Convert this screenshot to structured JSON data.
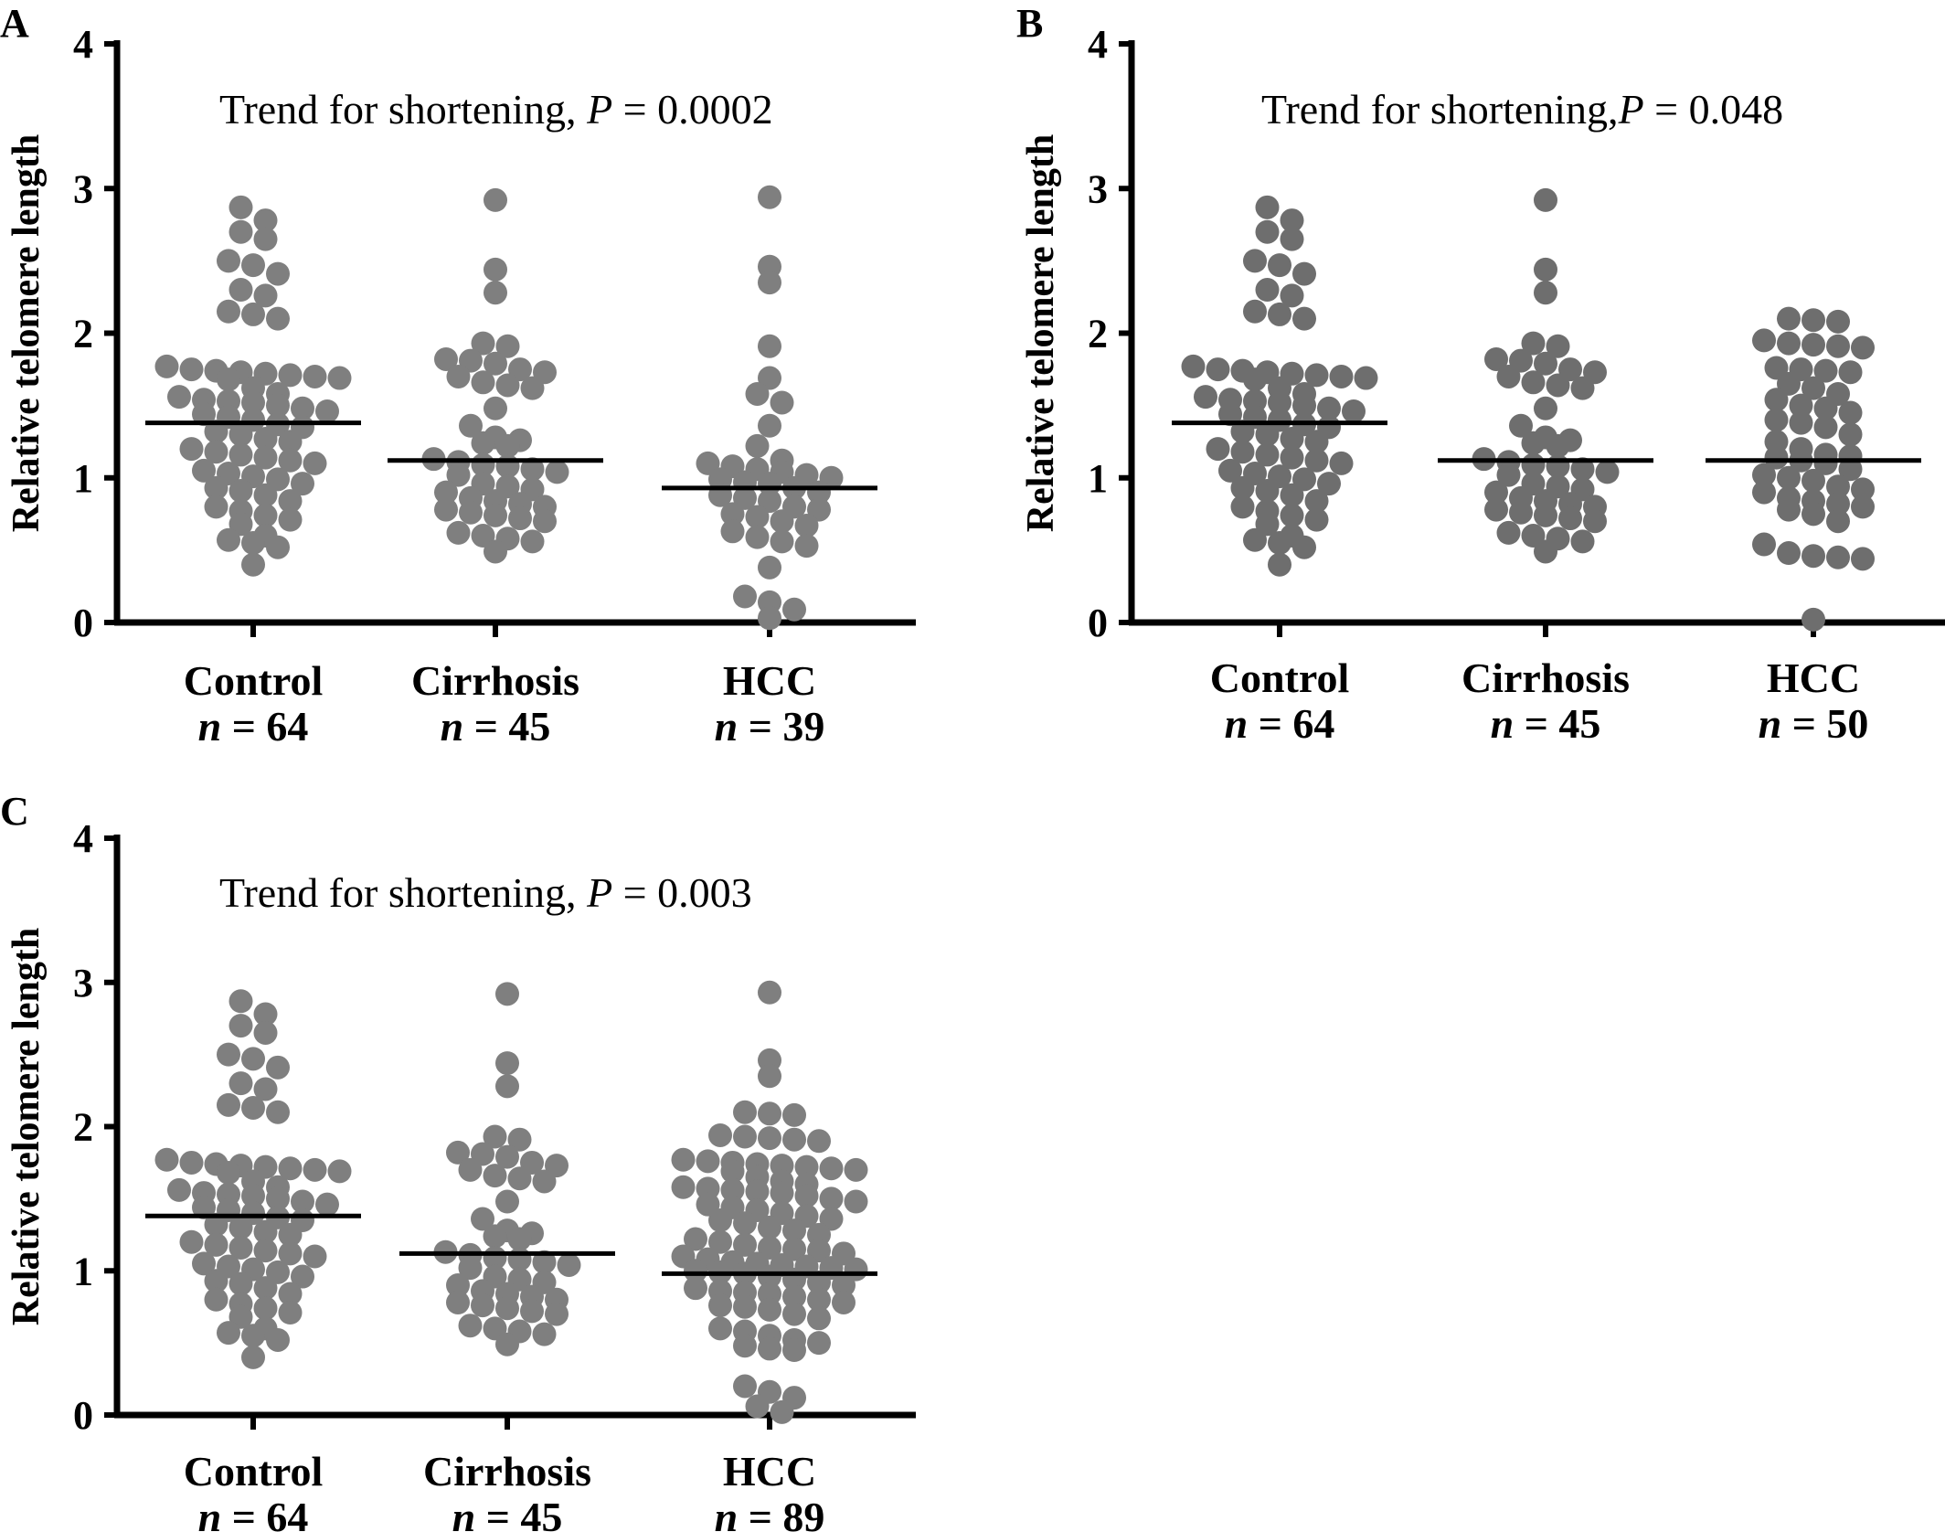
{
  "figure_panels": [
    "A",
    "B",
    "C"
  ],
  "chart_data": [
    {
      "panel": "A",
      "type": "scatter",
      "title": "Trend for shortening, P = 0.0002",
      "annotation_prefix": "Trend for shortening, ",
      "annotation_p": "P",
      "annotation_suffix": " = 0.0002",
      "xlabel": "",
      "ylabel": "Relative telomere length",
      "ylim": [
        0,
        4
      ],
      "yticks": [
        "0",
        "1",
        "2",
        "3",
        "4"
      ],
      "categories": [
        "Control",
        "Cirrhosis",
        "HCC"
      ],
      "n_labels": [
        "n = 64",
        "n = 45",
        "n = 39"
      ],
      "n_values": [
        "64",
        "45",
        "39"
      ],
      "marker_color": "#7f7f7f",
      "means": [
        1.38,
        1.12,
        0.93
      ],
      "series": [
        {
          "values": [
            2.87,
            2.78,
            2.7,
            2.65,
            2.5,
            2.47,
            2.41,
            2.3,
            2.26,
            2.15,
            2.13,
            2.1,
            1.77,
            1.75,
            1.74,
            1.73,
            1.72,
            1.71,
            1.7,
            1.69,
            1.68,
            1.62,
            1.58,
            1.56,
            1.54,
            1.53,
            1.52,
            1.5,
            1.48,
            1.46,
            1.44,
            1.42,
            1.4,
            1.37,
            1.35,
            1.32,
            1.3,
            1.27,
            1.25,
            1.2,
            1.18,
            1.16,
            1.14,
            1.12,
            1.1,
            1.05,
            1.03,
            1.01,
            0.99,
            0.96,
            0.93,
            0.91,
            0.88,
            0.84,
            0.8,
            0.77,
            0.74,
            0.71,
            0.68,
            0.6,
            0.57,
            0.55,
            0.52,
            0.4
          ]
        },
        {
          "values": [
            2.92,
            2.44,
            2.28,
            1.93,
            1.91,
            1.82,
            1.81,
            1.79,
            1.75,
            1.73,
            1.7,
            1.66,
            1.64,
            1.62,
            1.48,
            1.36,
            1.28,
            1.26,
            1.24,
            1.22,
            1.13,
            1.11,
            1.09,
            1.08,
            1.06,
            1.04,
            1.02,
            0.96,
            0.94,
            0.92,
            0.9,
            0.86,
            0.84,
            0.82,
            0.8,
            0.78,
            0.76,
            0.74,
            0.72,
            0.7,
            0.62,
            0.6,
            0.58,
            0.56,
            0.49
          ]
        },
        {
          "values": [
            2.94,
            2.46,
            2.35,
            1.91,
            1.69,
            1.58,
            1.52,
            1.36,
            1.22,
            1.12,
            1.1,
            1.08,
            1.06,
            1.04,
            1.02,
            1.0,
            0.99,
            0.97,
            0.96,
            0.93,
            0.9,
            0.88,
            0.86,
            0.84,
            0.8,
            0.78,
            0.75,
            0.73,
            0.7,
            0.67,
            0.63,
            0.59,
            0.56,
            0.53,
            0.38,
            0.18,
            0.14,
            0.09,
            0.03
          ]
        }
      ]
    },
    {
      "panel": "B",
      "type": "scatter",
      "title": "Trend for shortening, P = 0.048",
      "annotation_prefix": "Trend for shortening,",
      "annotation_p": "P",
      "annotation_suffix": " = 0.048",
      "xlabel": "",
      "ylabel": "Relative telomere length",
      "ylim": [
        0,
        4
      ],
      "yticks": [
        "0",
        "1",
        "2",
        "3",
        "4"
      ],
      "categories": [
        "Control",
        "Cirrhosis",
        "HCC"
      ],
      "n_labels": [
        "n = 64",
        "n = 45",
        "n = 50"
      ],
      "n_values": [
        "64",
        "45",
        "50"
      ],
      "marker_color": "#6e6e6e",
      "means": [
        1.38,
        1.12,
        1.12
      ],
      "series": [
        {
          "values": [
            2.87,
            2.78,
            2.7,
            2.65,
            2.5,
            2.47,
            2.41,
            2.3,
            2.26,
            2.15,
            2.13,
            2.1,
            1.77,
            1.75,
            1.74,
            1.73,
            1.72,
            1.71,
            1.7,
            1.69,
            1.68,
            1.62,
            1.58,
            1.56,
            1.54,
            1.53,
            1.52,
            1.5,
            1.48,
            1.46,
            1.44,
            1.42,
            1.4,
            1.37,
            1.35,
            1.32,
            1.3,
            1.27,
            1.25,
            1.2,
            1.18,
            1.16,
            1.14,
            1.12,
            1.1,
            1.05,
            1.03,
            1.01,
            0.99,
            0.96,
            0.93,
            0.91,
            0.88,
            0.84,
            0.8,
            0.77,
            0.74,
            0.71,
            0.68,
            0.6,
            0.57,
            0.55,
            0.52,
            0.4
          ]
        },
        {
          "values": [
            2.92,
            2.44,
            2.28,
            1.93,
            1.91,
            1.82,
            1.81,
            1.79,
            1.75,
            1.73,
            1.7,
            1.66,
            1.64,
            1.62,
            1.48,
            1.36,
            1.28,
            1.26,
            1.24,
            1.22,
            1.13,
            1.11,
            1.09,
            1.08,
            1.06,
            1.04,
            1.02,
            0.96,
            0.94,
            0.92,
            0.9,
            0.86,
            0.84,
            0.82,
            0.8,
            0.78,
            0.76,
            0.74,
            0.72,
            0.7,
            0.62,
            0.6,
            0.58,
            0.56,
            0.49
          ]
        },
        {
          "values": [
            2.1,
            2.09,
            2.08,
            1.95,
            1.93,
            1.92,
            1.91,
            1.9,
            1.76,
            1.75,
            1.74,
            1.73,
            1.65,
            1.62,
            1.58,
            1.54,
            1.5,
            1.48,
            1.45,
            1.4,
            1.38,
            1.35,
            1.3,
            1.25,
            1.2,
            1.16,
            1.15,
            1.14,
            1.12,
            1.1,
            1.06,
            1.02,
            1.0,
            0.98,
            0.94,
            0.92,
            0.9,
            0.86,
            0.84,
            0.82,
            0.8,
            0.78,
            0.75,
            0.7,
            0.54,
            0.48,
            0.46,
            0.45,
            0.44,
            0.02
          ]
        }
      ]
    },
    {
      "panel": "C",
      "type": "scatter",
      "title": "Trend for shortening, P = 0.003",
      "annotation_prefix": "Trend for shortening, ",
      "annotation_p": "P",
      "annotation_suffix": " = 0.003",
      "xlabel": "",
      "ylabel": "Relative telomere length",
      "ylim": [
        0,
        4
      ],
      "yticks": [
        "0",
        "1",
        "2",
        "3",
        "4"
      ],
      "categories": [
        "Control",
        "Cirrhosis",
        "HCC"
      ],
      "n_labels": [
        "n = 64",
        "n = 45",
        "n = 89"
      ],
      "n_values": [
        "64",
        "45",
        "89"
      ],
      "marker_color": "#7f7f7f",
      "means": [
        1.38,
        1.12,
        0.98
      ],
      "series": [
        {
          "values": [
            2.87,
            2.78,
            2.7,
            2.65,
            2.5,
            2.47,
            2.41,
            2.3,
            2.26,
            2.15,
            2.13,
            2.1,
            1.77,
            1.75,
            1.74,
            1.73,
            1.72,
            1.71,
            1.7,
            1.69,
            1.68,
            1.62,
            1.58,
            1.56,
            1.54,
            1.53,
            1.52,
            1.5,
            1.48,
            1.46,
            1.44,
            1.42,
            1.4,
            1.37,
            1.35,
            1.32,
            1.3,
            1.27,
            1.25,
            1.2,
            1.18,
            1.16,
            1.14,
            1.12,
            1.1,
            1.05,
            1.03,
            1.01,
            0.99,
            0.96,
            0.93,
            0.91,
            0.88,
            0.84,
            0.8,
            0.77,
            0.74,
            0.71,
            0.68,
            0.6,
            0.57,
            0.55,
            0.52,
            0.4
          ]
        },
        {
          "values": [
            2.92,
            2.44,
            2.28,
            1.93,
            1.91,
            1.82,
            1.81,
            1.79,
            1.75,
            1.73,
            1.7,
            1.66,
            1.64,
            1.62,
            1.48,
            1.36,
            1.28,
            1.26,
            1.24,
            1.22,
            1.13,
            1.11,
            1.09,
            1.08,
            1.06,
            1.04,
            1.02,
            0.96,
            0.94,
            0.92,
            0.9,
            0.86,
            0.84,
            0.82,
            0.8,
            0.78,
            0.76,
            0.74,
            0.72,
            0.7,
            0.62,
            0.6,
            0.58,
            0.56,
            0.49
          ]
        },
        {
          "values": [
            2.93,
            2.46,
            2.35,
            2.1,
            2.09,
            2.08,
            1.94,
            1.93,
            1.92,
            1.91,
            1.9,
            1.77,
            1.76,
            1.75,
            1.74,
            1.73,
            1.72,
            1.71,
            1.7,
            1.69,
            1.65,
            1.62,
            1.6,
            1.58,
            1.57,
            1.56,
            1.55,
            1.54,
            1.52,
            1.5,
            1.48,
            1.46,
            1.44,
            1.42,
            1.4,
            1.38,
            1.36,
            1.35,
            1.33,
            1.3,
            1.28,
            1.25,
            1.22,
            1.2,
            1.18,
            1.16,
            1.15,
            1.14,
            1.12,
            1.1,
            1.08,
            1.06,
            1.05,
            1.04,
            1.03,
            1.02,
            1.01,
            1.0,
            0.99,
            0.98,
            0.96,
            0.94,
            0.92,
            0.9,
            0.88,
            0.86,
            0.85,
            0.84,
            0.82,
            0.8,
            0.78,
            0.76,
            0.75,
            0.73,
            0.7,
            0.67,
            0.6,
            0.58,
            0.55,
            0.52,
            0.5,
            0.48,
            0.46,
            0.45,
            0.2,
            0.16,
            0.12,
            0.06,
            0.02
          ]
        }
      ]
    }
  ]
}
